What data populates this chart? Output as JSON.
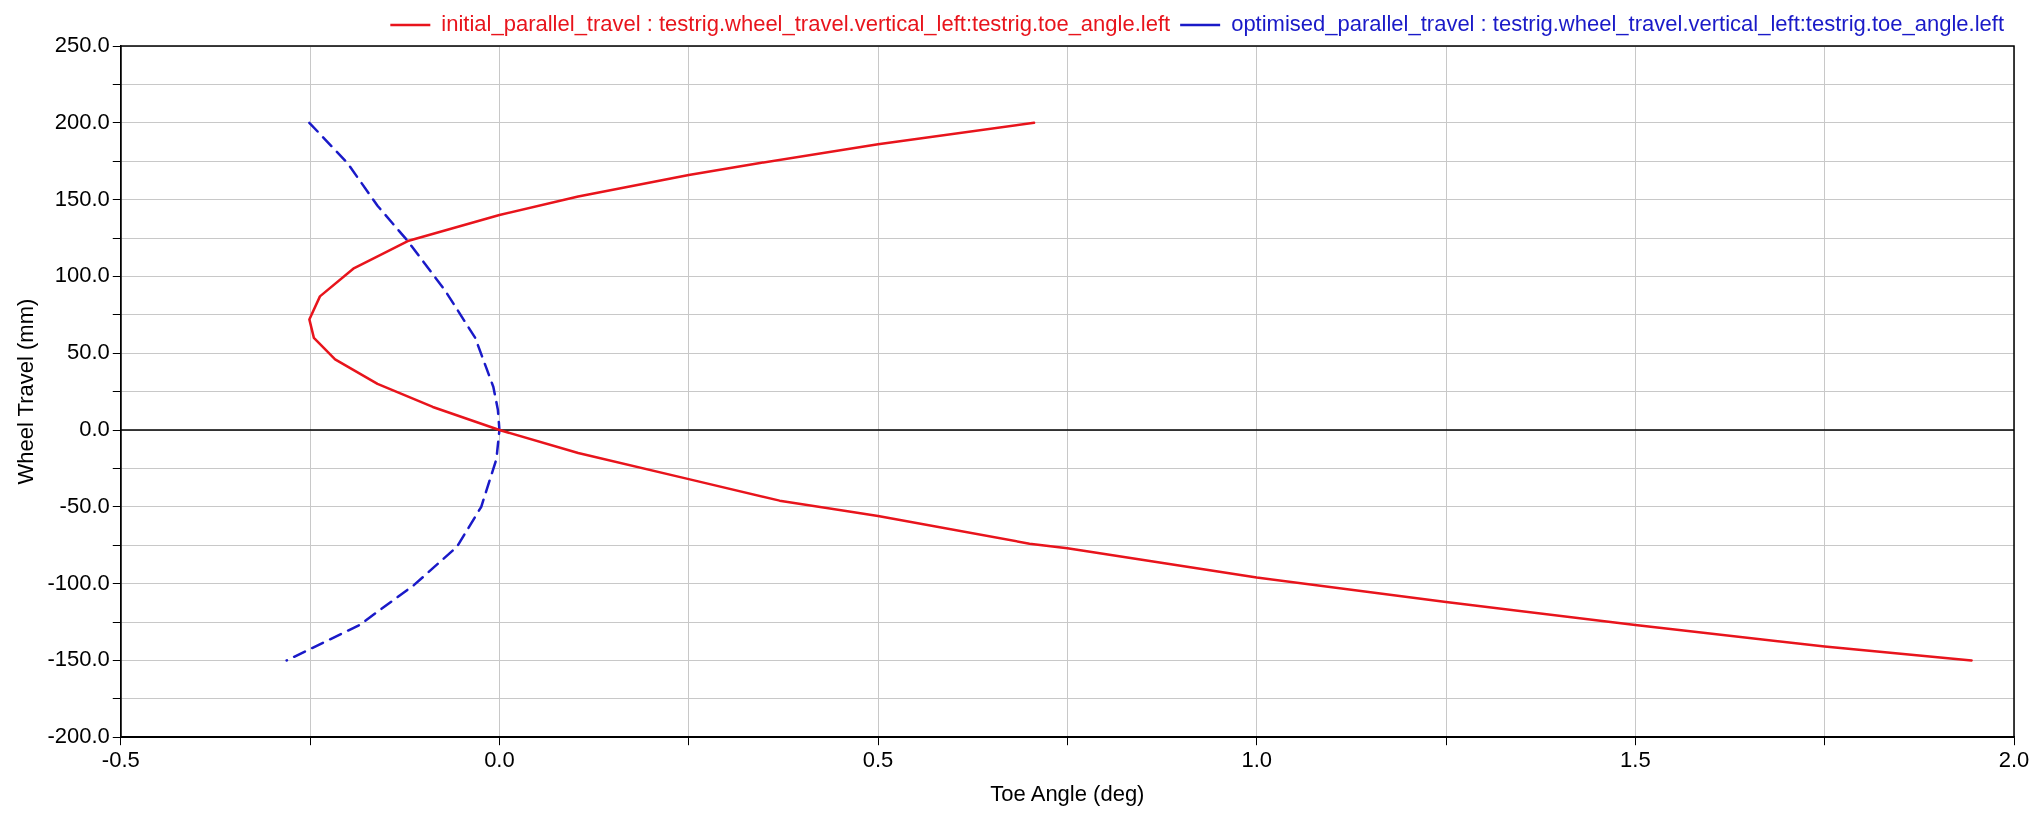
{
  "chart_data": {
    "type": "line",
    "xlabel": "Toe Angle (deg)",
    "ylabel": "Wheel Travel (mm)",
    "xlim": [
      -0.5,
      2.0
    ],
    "xticks": [
      {
        "value": -0.5,
        "label": "-0.5"
      },
      {
        "value": -0.25,
        "label": null
      },
      {
        "value": 0,
        "label": "0.0"
      },
      {
        "value": 0.25,
        "label": null
      },
      {
        "value": 0.5,
        "label": "0.5"
      },
      {
        "value": 0.75,
        "label": null
      },
      {
        "value": 1,
        "label": "1.0"
      },
      {
        "value": 1.25,
        "label": null
      },
      {
        "value": 1.5,
        "label": "1.5"
      },
      {
        "value": 1.75,
        "label": null
      },
      {
        "value": 2,
        "label": "2.0"
      }
    ],
    "ylim": [
      -200,
      250
    ],
    "yticks": [
      {
        "value": -200,
        "label": "-200.0"
      },
      {
        "value": -175,
        "label": null
      },
      {
        "value": -150,
        "label": "-150.0"
      },
      {
        "value": -125,
        "label": null
      },
      {
        "value": -100,
        "label": "-100.0"
      },
      {
        "value": -75,
        "label": null
      },
      {
        "value": -50,
        "label": "-50.0"
      },
      {
        "value": -25,
        "label": null
      },
      {
        "value": 0,
        "label": "0.0"
      },
      {
        "value": 25,
        "label": null
      },
      {
        "value": 50,
        "label": "50.0"
      },
      {
        "value": 75,
        "label": null
      },
      {
        "value": 100,
        "label": "100.0"
      },
      {
        "value": 125,
        "label": null
      },
      {
        "value": 150,
        "label": "150.0"
      },
      {
        "value": 175,
        "label": null
      },
      {
        "value": 200,
        "label": "200.0"
      },
      {
        "value": 225,
        "label": null
      },
      {
        "value": 250,
        "label": "250.0"
      }
    ],
    "grid": true,
    "legend": "top right",
    "marker": "none",
    "ref_lines": [
      {
        "axis": "y",
        "value": 0,
        "color": "#000000"
      }
    ],
    "series": [
      {
        "name": "initial_parallel_travel : testrig.wheel_travel.vertical_left:testrig.toe_angle.left",
        "color": "#e8141c",
        "line_style": "solid",
        "x": [
          0.706,
          0.5,
          0.346,
          0.25,
          0.104,
          0,
          -0.121,
          -0.193,
          -0.237,
          -0.251,
          -0.245,
          -0.217,
          -0.161,
          -0.088,
          0,
          0.104,
          0.25,
          0.37,
          0.5,
          0.7,
          0.75,
          1.0,
          1.25,
          1.5,
          1.75,
          1.944
        ],
        "values": [
          200,
          186,
          174,
          166,
          152,
          140,
          123,
          105,
          87,
          72,
          60,
          46,
          30,
          15,
          0,
          -15,
          -32,
          -46,
          -56,
          -74,
          -77,
          -96,
          -112,
          -127,
          -141,
          -150
        ]
      },
      {
        "name": "optimised_parallel_travel : testrig.wheel_travel.vertical_left:testrig.toe_angle.left",
        "color": "#1a1ac8",
        "line_style": "dashed",
        "x": [
          -0.251,
          -0.201,
          -0.161,
          -0.121,
          -0.072,
          -0.032,
          -0.008,
          -0.002,
          0,
          -0.004,
          -0.024,
          -0.056,
          -0.113,
          -0.185,
          -0.281
        ],
        "values": [
          200,
          174,
          146,
          123,
          91,
          60,
          28,
          13,
          0,
          -19,
          -50,
          -76,
          -101,
          -127,
          -150
        ]
      }
    ]
  }
}
